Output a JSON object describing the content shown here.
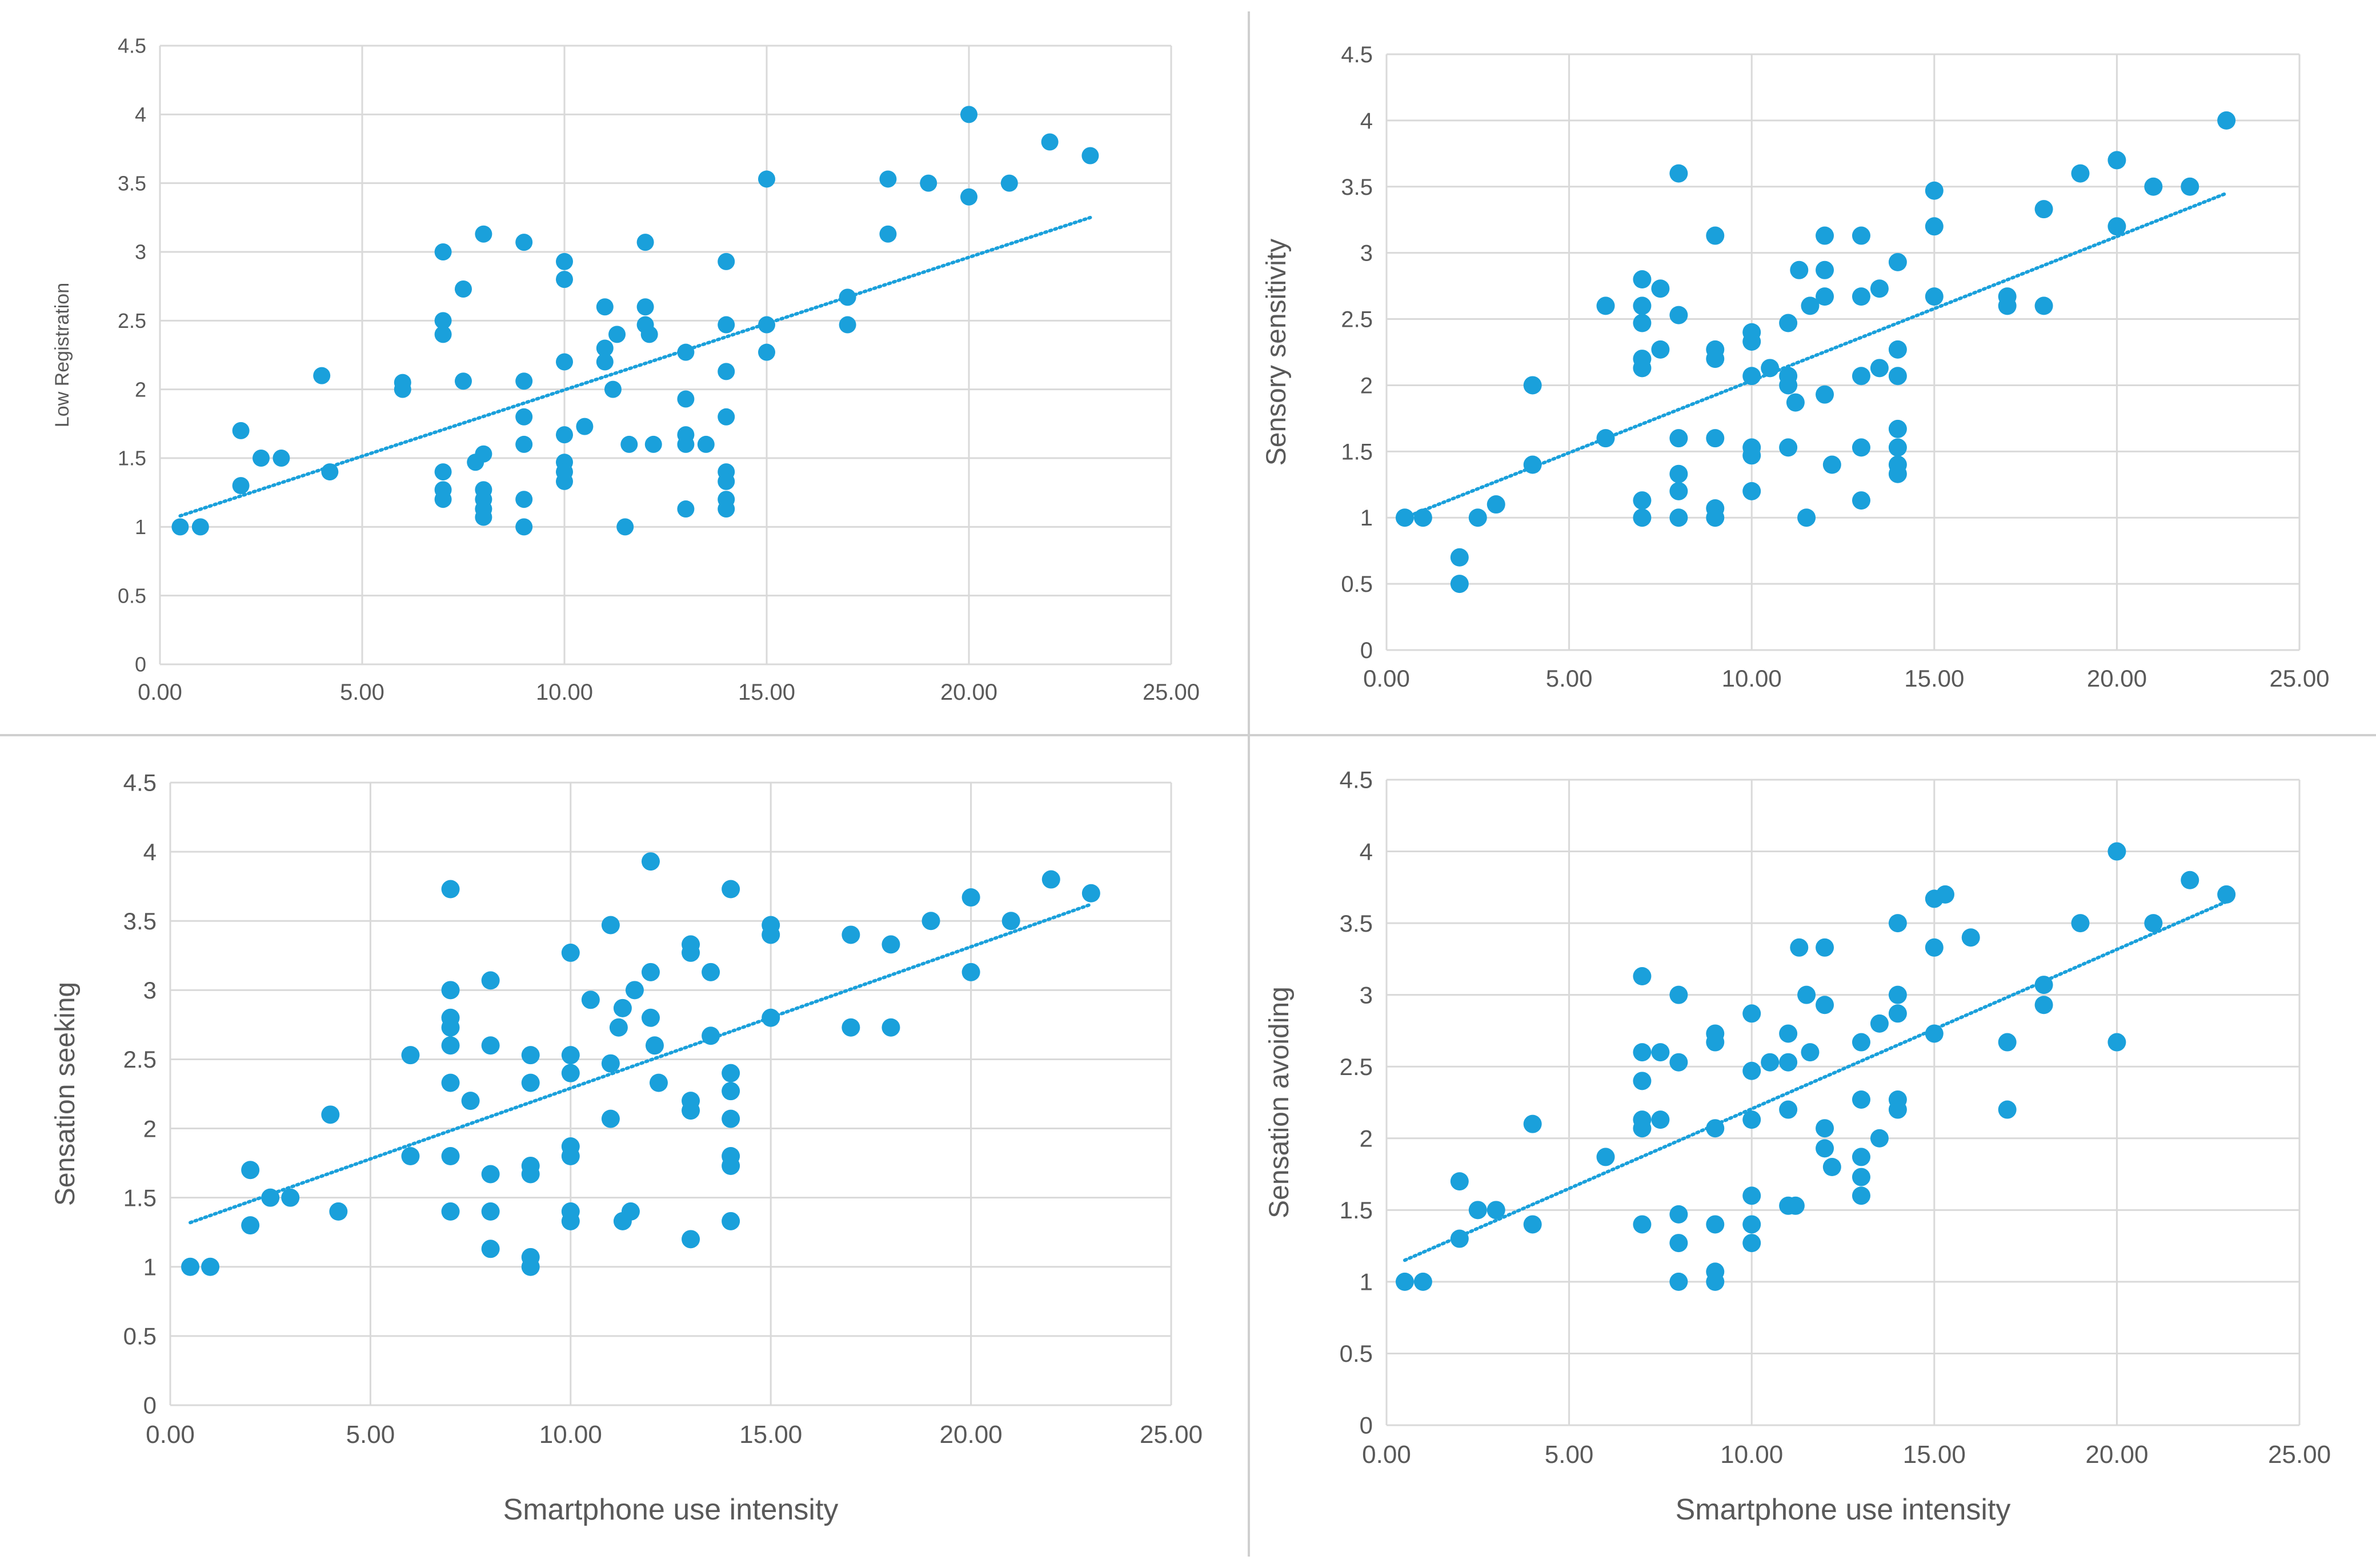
{
  "chart_data": [
    {
      "type": "scatter",
      "title": "",
      "xlabel": "",
      "ylabel": "Low Registration",
      "xlim": [
        0,
        25
      ],
      "ylim": [
        0,
        4.5
      ],
      "xticks": [
        "0.00",
        "5.00",
        "10.00",
        "15.00",
        "20.00",
        "25.00"
      ],
      "yticks": [
        "0",
        "0.5",
        "1",
        "1.5",
        "2",
        "2.5",
        "3",
        "3.5",
        "4",
        "4.5"
      ],
      "grid": true,
      "trendline": {
        "style": "dotted",
        "x": [
          0.5,
          23
        ],
        "y": [
          1.08,
          3.25
        ]
      },
      "points": [
        [
          0.5,
          1
        ],
        [
          1,
          1
        ],
        [
          2,
          1.7
        ],
        [
          2,
          1.3
        ],
        [
          2.5,
          1.5
        ],
        [
          3,
          1.5
        ],
        [
          4,
          2.1
        ],
        [
          4.2,
          1.4
        ],
        [
          6,
          2.05
        ],
        [
          6,
          2.0
        ],
        [
          7,
          3.0
        ],
        [
          7,
          2.5
        ],
        [
          7,
          2.4
        ],
        [
          7,
          1.4
        ],
        [
          7,
          1.27
        ],
        [
          7,
          1.2
        ],
        [
          7.5,
          2.73
        ],
        [
          7.5,
          2.06
        ],
        [
          7.8,
          1.47
        ],
        [
          8,
          3.13
        ],
        [
          8,
          1.53
        ],
        [
          8,
          1.27
        ],
        [
          8,
          1.2
        ],
        [
          8,
          1.13
        ],
        [
          8,
          1.07
        ],
        [
          9,
          3.07
        ],
        [
          9,
          2.06
        ],
        [
          9,
          1.8
        ],
        [
          9,
          1.6
        ],
        [
          9,
          1.2
        ],
        [
          9,
          1.0
        ],
        [
          10,
          2.93
        ],
        [
          10,
          2.8
        ],
        [
          10,
          2.2
        ],
        [
          10,
          1.67
        ],
        [
          10,
          1.47
        ],
        [
          10,
          1.4
        ],
        [
          10,
          1.33
        ],
        [
          10.5,
          1.73
        ],
        [
          11,
          2.6
        ],
        [
          11,
          2.3
        ],
        [
          11,
          2.2
        ],
        [
          11.2,
          2.0
        ],
        [
          11.3,
          2.4
        ],
        [
          11.5,
          1.0
        ],
        [
          11.6,
          1.6
        ],
        [
          12,
          3.07
        ],
        [
          12,
          2.6
        ],
        [
          12,
          2.47
        ],
        [
          12.1,
          2.4
        ],
        [
          12.2,
          1.6
        ],
        [
          13,
          2.27
        ],
        [
          13,
          1.93
        ],
        [
          13,
          1.67
        ],
        [
          13,
          1.6
        ],
        [
          13,
          1.13
        ],
        [
          13.5,
          1.6
        ],
        [
          14,
          2.93
        ],
        [
          14,
          2.47
        ],
        [
          14,
          2.13
        ],
        [
          14,
          1.8
        ],
        [
          14,
          1.4
        ],
        [
          14,
          1.33
        ],
        [
          14,
          1.2
        ],
        [
          14,
          1.13
        ],
        [
          15,
          3.53
        ],
        [
          15,
          2.47
        ],
        [
          15,
          2.27
        ],
        [
          17,
          2.67
        ],
        [
          17,
          2.47
        ],
        [
          18,
          3.53
        ],
        [
          18,
          3.13
        ],
        [
          19,
          3.5
        ],
        [
          20,
          4.0
        ],
        [
          20,
          3.4
        ],
        [
          21,
          3.5
        ],
        [
          22,
          3.8
        ],
        [
          23,
          3.7
        ]
      ]
    },
    {
      "type": "scatter",
      "title": "",
      "xlabel": "",
      "ylabel": "Sensory sensitivity",
      "xlim": [
        0,
        25
      ],
      "ylim": [
        0,
        4.5
      ],
      "xticks": [
        "0.00",
        "5.00",
        "10.00",
        "15.00",
        "20.00",
        "25.00"
      ],
      "yticks": [
        "0",
        "0.5",
        "1",
        "1.5",
        "2",
        "2.5",
        "3",
        "3.5",
        "4",
        "4.5"
      ],
      "grid": true,
      "trendline": {
        "style": "dotted",
        "x": [
          0.5,
          23
        ],
        "y": [
          1.0,
          3.45
        ]
      },
      "points": [
        [
          0.5,
          1
        ],
        [
          1,
          1
        ],
        [
          2,
          0.7
        ],
        [
          2,
          0.5
        ],
        [
          2.5,
          1.0
        ],
        [
          3,
          1.1
        ],
        [
          4,
          2.0
        ],
        [
          4,
          1.4
        ],
        [
          6,
          2.6
        ],
        [
          6,
          1.6
        ],
        [
          7,
          2.8
        ],
        [
          7,
          2.6
        ],
        [
          7,
          2.47
        ],
        [
          7,
          2.2
        ],
        [
          7,
          2.13
        ],
        [
          7,
          1.13
        ],
        [
          7,
          1.0
        ],
        [
          7.5,
          2.73
        ],
        [
          7.5,
          2.27
        ],
        [
          8,
          3.6
        ],
        [
          8,
          2.53
        ],
        [
          8,
          1.6
        ],
        [
          8,
          1.33
        ],
        [
          8,
          1.2
        ],
        [
          8,
          1.0
        ],
        [
          9,
          3.13
        ],
        [
          9,
          2.27
        ],
        [
          9,
          2.2
        ],
        [
          9,
          1.6
        ],
        [
          9,
          1.07
        ],
        [
          9,
          1.0
        ],
        [
          10,
          2.4
        ],
        [
          10,
          2.33
        ],
        [
          10,
          2.07
        ],
        [
          10,
          1.53
        ],
        [
          10,
          1.47
        ],
        [
          10,
          1.2
        ],
        [
          10.5,
          2.13
        ],
        [
          11,
          2.47
        ],
        [
          11,
          2.07
        ],
        [
          11,
          2.0
        ],
        [
          11,
          1.53
        ],
        [
          11.2,
          1.87
        ],
        [
          11.3,
          2.87
        ],
        [
          11.5,
          1.0
        ],
        [
          11.6,
          2.6
        ],
        [
          12,
          3.13
        ],
        [
          12,
          2.87
        ],
        [
          12,
          2.67
        ],
        [
          12,
          1.93
        ],
        [
          12.2,
          1.4
        ],
        [
          13,
          3.13
        ],
        [
          13,
          2.67
        ],
        [
          13,
          2.07
        ],
        [
          13,
          1.53
        ],
        [
          13,
          1.13
        ],
        [
          13.5,
          2.73
        ],
        [
          13.5,
          2.13
        ],
        [
          14,
          2.93
        ],
        [
          14,
          2.27
        ],
        [
          14,
          2.07
        ],
        [
          14,
          1.67
        ],
        [
          14,
          1.53
        ],
        [
          14,
          1.4
        ],
        [
          14,
          1.33
        ],
        [
          15,
          3.47
        ],
        [
          15,
          3.2
        ],
        [
          15,
          2.67
        ],
        [
          17,
          2.67
        ],
        [
          17,
          2.6
        ],
        [
          18,
          3.33
        ],
        [
          18,
          2.6
        ],
        [
          19,
          3.6
        ],
        [
          20,
          3.7
        ],
        [
          20,
          3.2
        ],
        [
          21,
          3.5
        ],
        [
          22,
          3.5
        ],
        [
          23,
          4.0
        ]
      ]
    },
    {
      "type": "scatter",
      "title": "",
      "xlabel": "Smartphone use intensity",
      "ylabel": "Sensation seeking",
      "xlim": [
        0,
        25
      ],
      "ylim": [
        0,
        4.5
      ],
      "xticks": [
        "0.00",
        "5.00",
        "10.00",
        "15.00",
        "20.00",
        "25.00"
      ],
      "yticks": [
        "0",
        "0.5",
        "1",
        "1.5",
        "2",
        "2.5",
        "3",
        "3.5",
        "4",
        "4.5"
      ],
      "grid": true,
      "trendline": {
        "style": "dotted",
        "x": [
          0.5,
          23
        ],
        "y": [
          1.32,
          3.62
        ]
      },
      "points": [
        [
          0.5,
          1
        ],
        [
          1,
          1
        ],
        [
          2,
          1.7
        ],
        [
          2,
          1.3
        ],
        [
          2.5,
          1.5
        ],
        [
          3,
          1.5
        ],
        [
          4,
          2.1
        ],
        [
          4.2,
          1.4
        ],
        [
          6,
          2.53
        ],
        [
          6,
          1.8
        ],
        [
          7,
          3.73
        ],
        [
          7,
          3.0
        ],
        [
          7,
          2.8
        ],
        [
          7,
          2.73
        ],
        [
          7,
          2.6
        ],
        [
          7,
          2.33
        ],
        [
          7,
          1.8
        ],
        [
          7,
          1.4
        ],
        [
          7.5,
          2.2
        ],
        [
          8,
          3.07
        ],
        [
          8,
          2.6
        ],
        [
          8,
          1.67
        ],
        [
          8,
          1.4
        ],
        [
          8,
          1.13
        ],
        [
          9,
          2.53
        ],
        [
          9,
          2.33
        ],
        [
          9,
          1.73
        ],
        [
          9,
          1.67
        ],
        [
          9,
          1.07
        ],
        [
          9,
          1.0
        ],
        [
          10,
          3.27
        ],
        [
          10,
          2.53
        ],
        [
          10,
          2.4
        ],
        [
          10,
          1.87
        ],
        [
          10,
          1.8
        ],
        [
          10,
          1.4
        ],
        [
          10,
          1.33
        ],
        [
          10.5,
          2.93
        ],
        [
          11,
          3.47
        ],
        [
          11,
          2.47
        ],
        [
          11,
          2.07
        ],
        [
          11.2,
          2.73
        ],
        [
          11.3,
          2.87
        ],
        [
          11.3,
          1.33
        ],
        [
          11.5,
          1.4
        ],
        [
          11.6,
          3.0
        ],
        [
          12,
          3.93
        ],
        [
          12,
          3.13
        ],
        [
          12,
          2.8
        ],
        [
          12.1,
          2.6
        ],
        [
          12.2,
          2.33
        ],
        [
          13,
          3.33
        ],
        [
          13,
          3.27
        ],
        [
          13,
          2.2
        ],
        [
          13,
          2.13
        ],
        [
          13,
          1.2
        ],
        [
          13.5,
          3.13
        ],
        [
          13.5,
          2.67
        ],
        [
          14,
          3.73
        ],
        [
          14,
          2.4
        ],
        [
          14,
          2.27
        ],
        [
          14,
          2.07
        ],
        [
          14,
          1.8
        ],
        [
          14,
          1.73
        ],
        [
          14,
          1.33
        ],
        [
          15,
          3.47
        ],
        [
          15,
          3.4
        ],
        [
          15,
          2.8
        ],
        [
          17,
          3.4
        ],
        [
          17,
          2.73
        ],
        [
          18,
          3.33
        ],
        [
          18,
          2.73
        ],
        [
          19,
          3.5
        ],
        [
          20,
          3.67
        ],
        [
          20,
          3.13
        ],
        [
          21,
          3.5
        ],
        [
          22,
          3.8
        ],
        [
          23,
          3.7
        ]
      ]
    },
    {
      "type": "scatter",
      "title": "",
      "xlabel": "Smartphone use intensity",
      "ylabel": "Sensation avoiding",
      "xlim": [
        0,
        25
      ],
      "ylim": [
        0,
        4.5
      ],
      "xticks": [
        "0.00",
        "5.00",
        "10.00",
        "15.00",
        "20.00",
        "25.00"
      ],
      "yticks": [
        "0",
        "0.5",
        "1",
        "1.5",
        "2",
        "2.5",
        "3",
        "3.5",
        "4",
        "4.5"
      ],
      "grid": true,
      "trendline": {
        "style": "dotted",
        "x": [
          0.5,
          23
        ],
        "y": [
          1.15,
          3.65
        ]
      },
      "points": [
        [
          0.5,
          1
        ],
        [
          1,
          1
        ],
        [
          2,
          1.7
        ],
        [
          2,
          1.3
        ],
        [
          2.5,
          1.5
        ],
        [
          3,
          1.5
        ],
        [
          4,
          2.1
        ],
        [
          4,
          1.4
        ],
        [
          6,
          1.87
        ],
        [
          7,
          3.13
        ],
        [
          7,
          2.6
        ],
        [
          7,
          2.4
        ],
        [
          7,
          2.13
        ],
        [
          7,
          2.07
        ],
        [
          7,
          1.4
        ],
        [
          7.5,
          2.6
        ],
        [
          7.5,
          2.13
        ],
        [
          8,
          3.0
        ],
        [
          8,
          2.53
        ],
        [
          8,
          1.47
        ],
        [
          8,
          1.27
        ],
        [
          8,
          1.0
        ],
        [
          9,
          2.73
        ],
        [
          9,
          2.67
        ],
        [
          9,
          2.07
        ],
        [
          9,
          1.4
        ],
        [
          9,
          1.07
        ],
        [
          9,
          1.0
        ],
        [
          10,
          2.87
        ],
        [
          10,
          2.47
        ],
        [
          10,
          2.13
        ],
        [
          10,
          1.6
        ],
        [
          10,
          1.4
        ],
        [
          10,
          1.27
        ],
        [
          10.5,
          2.53
        ],
        [
          11,
          2.73
        ],
        [
          11,
          2.53
        ],
        [
          11,
          2.2
        ],
        [
          11,
          1.53
        ],
        [
          11.2,
          1.53
        ],
        [
          11.3,
          3.33
        ],
        [
          11.5,
          3.0
        ],
        [
          11.6,
          2.6
        ],
        [
          12,
          3.33
        ],
        [
          12,
          2.93
        ],
        [
          12,
          2.07
        ],
        [
          12,
          1.93
        ],
        [
          12.2,
          1.8
        ],
        [
          13,
          2.67
        ],
        [
          13,
          2.27
        ],
        [
          13,
          1.87
        ],
        [
          13,
          1.73
        ],
        [
          13,
          1.6
        ],
        [
          13.5,
          2.8
        ],
        [
          13.5,
          2.0
        ],
        [
          14,
          3.5
        ],
        [
          14,
          3.0
        ],
        [
          14,
          2.87
        ],
        [
          14,
          2.27
        ],
        [
          14,
          2.2
        ],
        [
          15,
          3.67
        ],
        [
          15,
          3.33
        ],
        [
          15,
          2.73
        ],
        [
          15.3,
          3.7
        ],
        [
          16,
          3.4
        ],
        [
          17,
          2.67
        ],
        [
          17,
          2.2
        ],
        [
          18,
          3.07
        ],
        [
          18,
          2.93
        ],
        [
          19,
          3.5
        ],
        [
          20,
          4.0
        ],
        [
          20,
          2.67
        ],
        [
          21,
          3.5
        ],
        [
          22,
          3.8
        ],
        [
          23,
          3.7
        ]
      ]
    }
  ],
  "colors": {
    "marker": "#1aa0db",
    "trendline": "#1aa0db",
    "gridline": "#d9d9d9",
    "tick_text": "#595959",
    "divider": "#cfcfcf"
  }
}
